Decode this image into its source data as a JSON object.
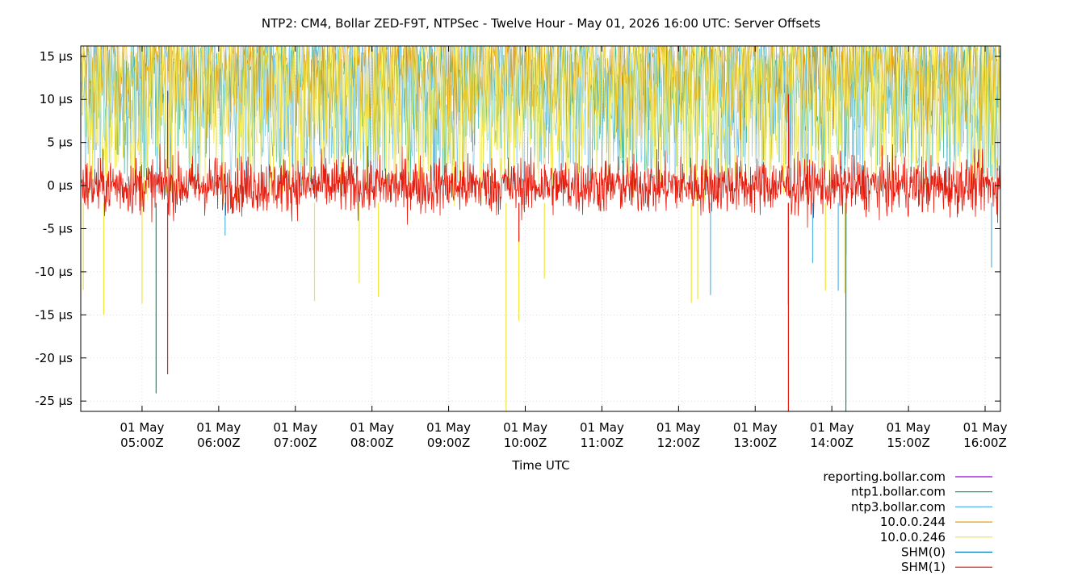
{
  "chart_data": {
    "type": "line",
    "title": "NTP2: CM4, Bollar ZED-F9T, NTPSec - Twelve Hour - May 01, 2026 16:00 UTC: Server Offsets",
    "xlabel": "Time UTC",
    "ylabel": "",
    "unit": "µs",
    "x_range": [
      "2026-05-01T04:12Z",
      "2026-05-01T16:12Z"
    ],
    "ylim": [
      -26.2,
      16.2
    ],
    "grid": true,
    "legend_position": "bottom-right",
    "y_ticks": [
      {
        "value": 15,
        "label": "15 µs"
      },
      {
        "value": 10,
        "label": "10 µs"
      },
      {
        "value": 5,
        "label": "5 µs"
      },
      {
        "value": 0,
        "label": "0 µs"
      },
      {
        "value": -5,
        "label": "-5 µs"
      },
      {
        "value": -10,
        "label": "-10 µs"
      },
      {
        "value": -15,
        "label": "-15 µs"
      },
      {
        "value": -20,
        "label": "-20 µs"
      },
      {
        "value": -25,
        "label": "-25 µs"
      }
    ],
    "x_ticks": [
      {
        "time": "05:00",
        "line1": "01 May",
        "line2": "05:00Z"
      },
      {
        "time": "06:00",
        "line1": "01 May",
        "line2": "06:00Z"
      },
      {
        "time": "07:00",
        "line1": "01 May",
        "line2": "07:00Z"
      },
      {
        "time": "08:00",
        "line1": "01 May",
        "line2": "08:00Z"
      },
      {
        "time": "09:00",
        "line1": "01 May",
        "line2": "09:00Z"
      },
      {
        "time": "10:00",
        "line1": "01 May",
        "line2": "10:00Z"
      },
      {
        "time": "11:00",
        "line1": "01 May",
        "line2": "11:00Z"
      },
      {
        "time": "12:00",
        "line1": "01 May",
        "line2": "12:00Z"
      },
      {
        "time": "13:00",
        "line1": "01 May",
        "line2": "13:00Z"
      },
      {
        "time": "14:00",
        "line1": "01 May",
        "line2": "14:00Z"
      },
      {
        "time": "15:00",
        "line1": "01 May",
        "line2": "15:00Z"
      },
      {
        "time": "16:00",
        "line1": "01 May",
        "line2": "16:00Z"
      }
    ],
    "series": [
      {
        "name": "reporting.bollar.com",
        "color": "#9400d3",
        "band": {
          "low": 0,
          "high": 0
        },
        "spikes": []
      },
      {
        "name": "ntp1.bollar.com",
        "color": "#009e73",
        "band": {
          "low": -3,
          "high": 16.2
        },
        "spikes": [
          {
            "time": "05:11",
            "value": -24.1
          },
          {
            "time": "14:11",
            "value": -26.2
          },
          {
            "time": "14:11",
            "value": -8
          }
        ]
      },
      {
        "name": "ntp3.bollar.com",
        "color": "#56b4e9",
        "band": {
          "low": -4,
          "high": 16.2
        },
        "spikes": [
          {
            "time": "06:05",
            "value": -5.8
          },
          {
            "time": "12:25",
            "value": -12.7
          },
          {
            "time": "13:45",
            "value": -9
          },
          {
            "time": "16:05",
            "value": -9.5
          },
          {
            "time": "14:05",
            "value": -12.2
          }
        ]
      },
      {
        "name": "10.0.0.244",
        "color": "#e69f00",
        "band": {
          "low": 3,
          "high": 16.2
        },
        "spikes": []
      },
      {
        "name": "10.0.0.246",
        "color": "#f0e442",
        "band": {
          "low": -5.5,
          "high": 16.2
        },
        "spikes": [
          {
            "time": "04:14",
            "value": -12.1
          },
          {
            "time": "04:30",
            "value": -15
          },
          {
            "time": "05:00",
            "value": -13.7
          },
          {
            "time": "07:15",
            "value": -13.4
          },
          {
            "time": "07:50",
            "value": -11.3
          },
          {
            "time": "08:05",
            "value": -12.9
          },
          {
            "time": "09:45",
            "value": -26.2
          },
          {
            "time": "09:55",
            "value": -15.7
          },
          {
            "time": "10:15",
            "value": -10.8
          },
          {
            "time": "12:10",
            "value": -13.6
          },
          {
            "time": "12:15",
            "value": -13.2
          },
          {
            "time": "13:55",
            "value": -12.2
          },
          {
            "time": "14:10",
            "value": -12.5
          }
        ]
      },
      {
        "name": "SHM(0)",
        "color": "#0072b2",
        "band": {
          "low": 0,
          "high": 0
        },
        "spikes": []
      },
      {
        "name": "SHM(1)",
        "color": "#e51e10",
        "band": {
          "low": -4.5,
          "high": 4.5
        },
        "spikes": [
          {
            "time": "05:20",
            "value": -21.9
          },
          {
            "time": "05:20",
            "value": 11
          },
          {
            "time": "13:26",
            "value": -26.2
          },
          {
            "time": "13:26",
            "value": -13.8
          },
          {
            "time": "13:26",
            "value": 10.6
          },
          {
            "time": "09:55",
            "value": -6.5
          }
        ]
      }
    ]
  }
}
